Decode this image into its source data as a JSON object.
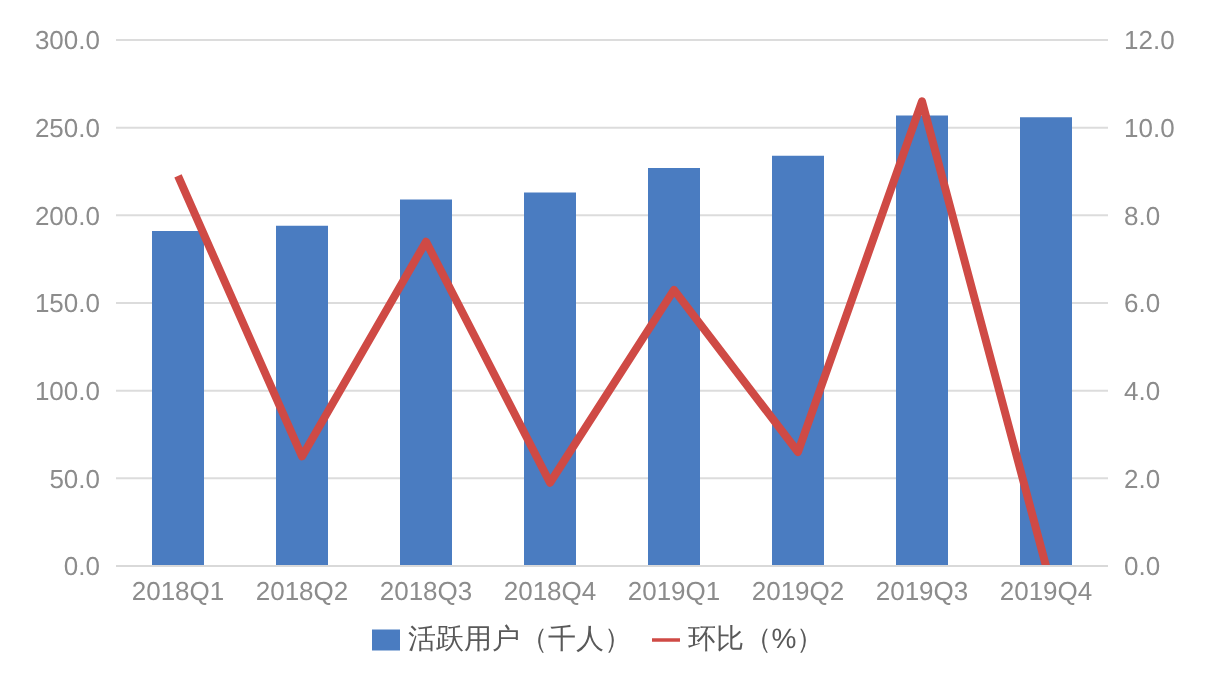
{
  "chart_data": {
    "type": "bar",
    "categories": [
      "2018Q1",
      "2018Q2",
      "2018Q3",
      "2018Q4",
      "2019Q1",
      "2019Q2",
      "2019Q3",
      "2019Q4"
    ],
    "series": [
      {
        "name": "活跃用户（千人）",
        "color": "#4a7cc1",
        "values": [
          191,
          194,
          209,
          213,
          227,
          234,
          257,
          256
        ]
      },
      {
        "name": "环比（%）",
        "color": "#cf4a45",
        "type": "line",
        "axis": "y2",
        "values": [
          8.9,
          2.5,
          7.4,
          1.9,
          6.3,
          2.6,
          10.6,
          0
        ]
      }
    ],
    "ylim": [
      0,
      300
    ],
    "yticks": [
      {
        "value": 0,
        "label": "0.0"
      },
      {
        "value": 50,
        "label": "50.0"
      },
      {
        "value": 100,
        "label": "100.0"
      },
      {
        "value": 150,
        "label": "150.0"
      },
      {
        "value": 200,
        "label": "200.0"
      },
      {
        "value": 250,
        "label": "250.0"
      },
      {
        "value": 300,
        "label": "300.0"
      }
    ],
    "y2lim": [
      0,
      12
    ],
    "y2ticks": [
      {
        "value": 0,
        "label": "0.0"
      },
      {
        "value": 2,
        "label": "2.0"
      },
      {
        "value": 4,
        "label": "4.0"
      },
      {
        "value": 6,
        "label": "6.0"
      },
      {
        "value": 8,
        "label": "8.0"
      },
      {
        "value": 10,
        "label": "10.0"
      },
      {
        "value": 12,
        "label": "12.0"
      }
    ],
    "grid": "y",
    "legend": "bottom",
    "marker": "none"
  }
}
